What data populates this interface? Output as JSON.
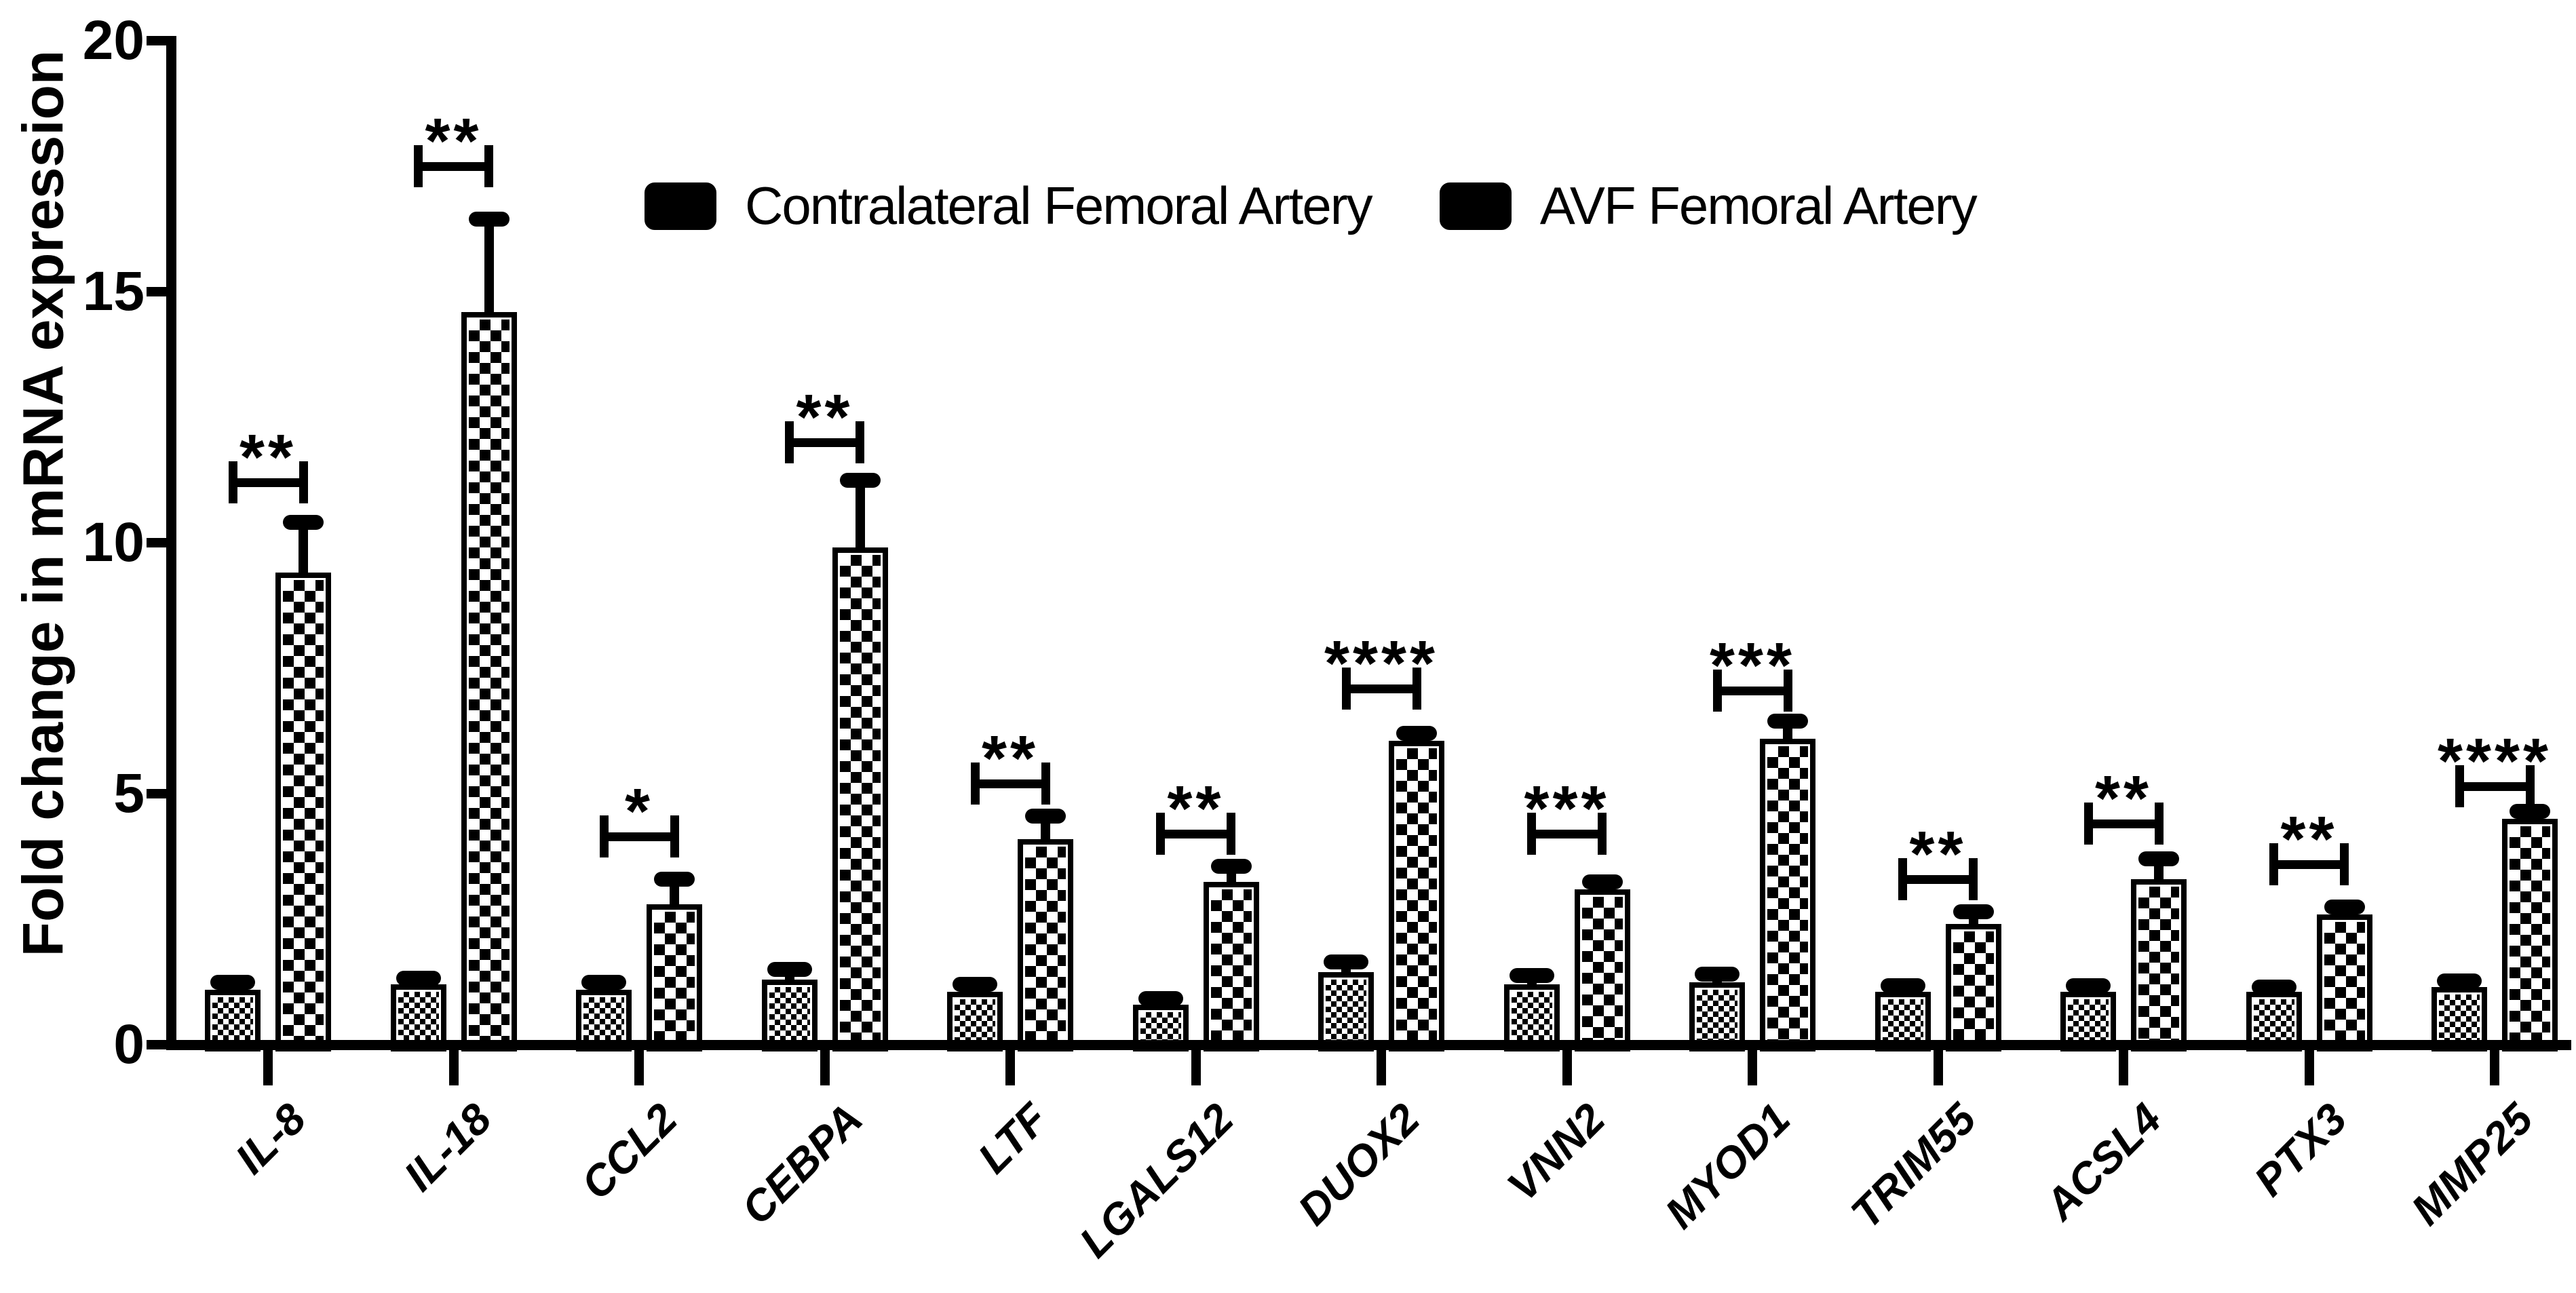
{
  "figure": {
    "background_color": "#ffffff",
    "ink_color": "#000000",
    "description": "Grouped bar chart of fold change in mRNA expression for 13 genes comparing contralateral femoral artery vs AVF femoral artery"
  },
  "legend": {
    "items": [
      {
        "label": "Contralateral Femoral Artery",
        "pattern": "fine-checker"
      },
      {
        "label": "AVF Femoral Artery",
        "pattern": "coarse-checker"
      }
    ]
  },
  "chart_data": {
    "type": "bar",
    "title": "",
    "xlabel": "",
    "ylabel": "Fold change in mRNA expression",
    "ylim": [
      0,
      20
    ],
    "yticks": [
      0,
      5,
      10,
      15,
      20
    ],
    "grid": false,
    "legend_position": "top-center",
    "bar_color": "#000000",
    "background": "#ffffff",
    "categories": [
      "IL-8",
      "IL-18",
      "CCL2",
      "CEBPA",
      "LTF",
      "LGALS12",
      "DUOX2",
      "VNN2",
      "MYOD1",
      "TRIM55",
      "ACSL4",
      "PTX3",
      "MMP25"
    ],
    "series": [
      {
        "name": "Contralateral Femoral Artery",
        "pattern": "fine-checker",
        "values": [
          1.1,
          1.2,
          1.1,
          1.3,
          1.05,
          0.8,
          1.45,
          1.2,
          1.25,
          1.05,
          1.05,
          1.05,
          1.15
        ],
        "errors": [
          0.15,
          0.12,
          0.15,
          0.2,
          0.15,
          0.12,
          0.2,
          0.18,
          0.15,
          0.12,
          0.12,
          0.1,
          0.12
        ]
      },
      {
        "name": "AVF Femoral Artery",
        "pattern": "coarse-checker",
        "values": [
          9.4,
          14.6,
          2.8,
          9.9,
          4.1,
          3.25,
          6.05,
          3.1,
          6.1,
          2.4,
          3.3,
          2.6,
          4.5
        ],
        "errors": [
          1.0,
          1.85,
          0.5,
          1.35,
          0.45,
          0.3,
          0.15,
          0.15,
          0.35,
          0.25,
          0.4,
          0.15,
          0.15
        ]
      }
    ],
    "significance": [
      {
        "category": "IL-8",
        "label": "**",
        "bracket_y": 11.2
      },
      {
        "category": "IL-18",
        "label": "**",
        "bracket_y": 17.5
      },
      {
        "category": "CCL2",
        "label": "*",
        "bracket_y": 4.15
      },
      {
        "category": "CEBPA",
        "label": "**",
        "bracket_y": 12.0
      },
      {
        "category": "LTF",
        "label": "**",
        "bracket_y": 5.2
      },
      {
        "category": "LGALS12",
        "label": "**",
        "bracket_y": 4.2
      },
      {
        "category": "DUOX2",
        "label": "****",
        "bracket_y": 7.1
      },
      {
        "category": "VNN2",
        "label": "***",
        "bracket_y": 4.2
      },
      {
        "category": "MYOD1",
        "label": "***",
        "bracket_y": 7.05
      },
      {
        "category": "TRIM55",
        "label": "**",
        "bracket_y": 3.3
      },
      {
        "category": "ACSL4",
        "label": "**",
        "bracket_y": 4.4
      },
      {
        "category": "PTX3",
        "label": "**",
        "bracket_y": 3.6
      },
      {
        "category": "MMP25",
        "label": "****",
        "bracket_y": 5.15
      }
    ]
  }
}
